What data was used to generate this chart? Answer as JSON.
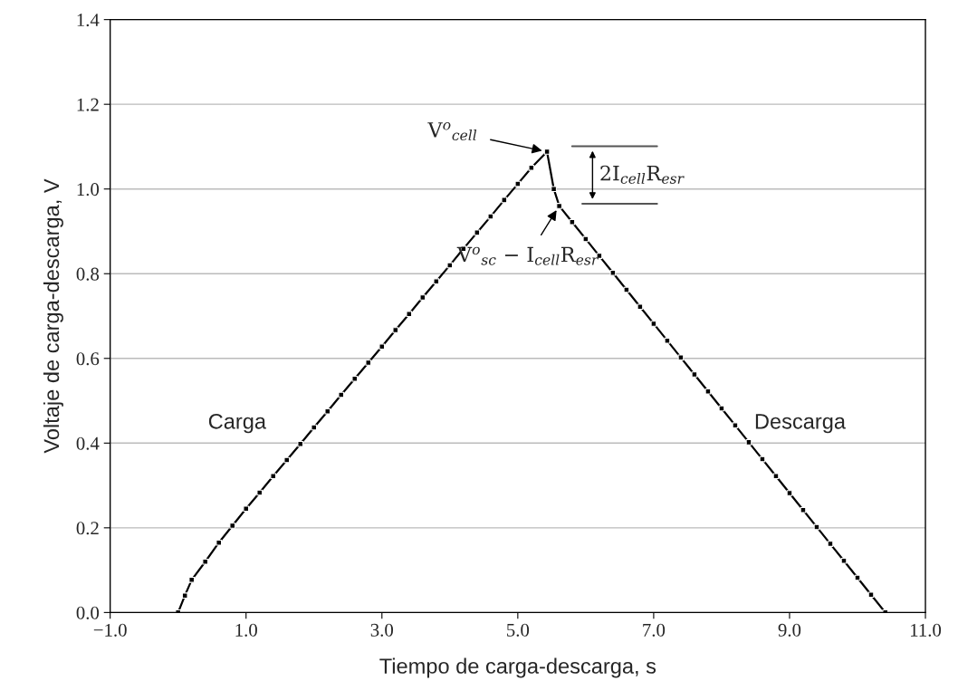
{
  "chart_data": {
    "type": "line",
    "xlabel": "Tiempo de carga-descarga, s",
    "ylabel": "Voltaje de carga-descarga, V",
    "series": [
      {
        "color": "#000000",
        "x": [
          0,
          0.1,
          0.2,
          0.4,
          0.6,
          0.8,
          1.0,
          1.2,
          1.4,
          1.6,
          1.8,
          2.0,
          2.2,
          2.4,
          2.6,
          2.8,
          3.0,
          3.2,
          3.4,
          3.6,
          3.8,
          4.0,
          4.2,
          4.4,
          4.6,
          4.8,
          5.0,
          5.2,
          5.43,
          5.53,
          5.61,
          5.8,
          6.0,
          6.2,
          6.4,
          6.6,
          6.8,
          7.0,
          7.2,
          7.4,
          7.6,
          7.8,
          8.0,
          8.2,
          8.4,
          8.6,
          8.8,
          9.0,
          9.2,
          9.4,
          9.6,
          9.8,
          10.0,
          10.2,
          10.41
        ],
        "values": [
          0,
          0.04,
          0.077,
          0.12,
          0.165,
          0.205,
          0.245,
          0.283,
          0.322,
          0.36,
          0.398,
          0.437,
          0.475,
          0.514,
          0.552,
          0.59,
          0.628,
          0.667,
          0.705,
          0.744,
          0.782,
          0.82,
          0.859,
          0.897,
          0.935,
          0.974,
          1.012,
          1.05,
          1.088,
          1.0,
          0.96,
          0.922,
          0.882,
          0.842,
          0.802,
          0.762,
          0.722,
          0.682,
          0.642,
          0.602,
          0.562,
          0.522,
          0.482,
          0.442,
          0.402,
          0.362,
          0.322,
          0.282,
          0.242,
          0.202,
          0.162,
          0.122,
          0.082,
          0.042,
          0
        ]
      }
    ],
    "marker": "square",
    "line_style": "solid",
    "grid": "y",
    "legend": false,
    "xlim": [
      -1,
      11
    ],
    "ylim": [
      0,
      1.4
    ],
    "xticks": [
      {
        "value": -1,
        "label": "−1.0"
      },
      {
        "value": 1,
        "label": "1.0"
      },
      {
        "value": 3,
        "label": "3.0"
      },
      {
        "value": 5,
        "label": "5.0"
      },
      {
        "value": 7,
        "label": "7.0"
      },
      {
        "value": 9,
        "label": "9.0"
      },
      {
        "value": 11,
        "label": "11.0"
      }
    ],
    "yticks": [
      {
        "value": 0,
        "label": "0.0"
      },
      {
        "value": 0.2,
        "label": "0.2"
      },
      {
        "value": 0.4,
        "label": "0.4"
      },
      {
        "value": 0.6,
        "label": "0.6"
      },
      {
        "value": 0.8,
        "label": "0.8"
      },
      {
        "value": 1.0,
        "label": "1.0"
      },
      {
        "value": 1.2,
        "label": "1.2"
      },
      {
        "value": 1.4,
        "label": "1.4"
      }
    ],
    "annotations": [
      {
        "text": "V$^{o}$$_{cell}$",
        "x": 5.43,
        "y": 1.088
      },
      {
        "text": "V$^{o}$$_{sc}$ − I$_{cell}$R$_{esr}$",
        "x": 5.61,
        "y": 0.96
      },
      "2I$_{cell}$R$_{esr}$",
      "Carga",
      "Descarga"
    ]
  }
}
